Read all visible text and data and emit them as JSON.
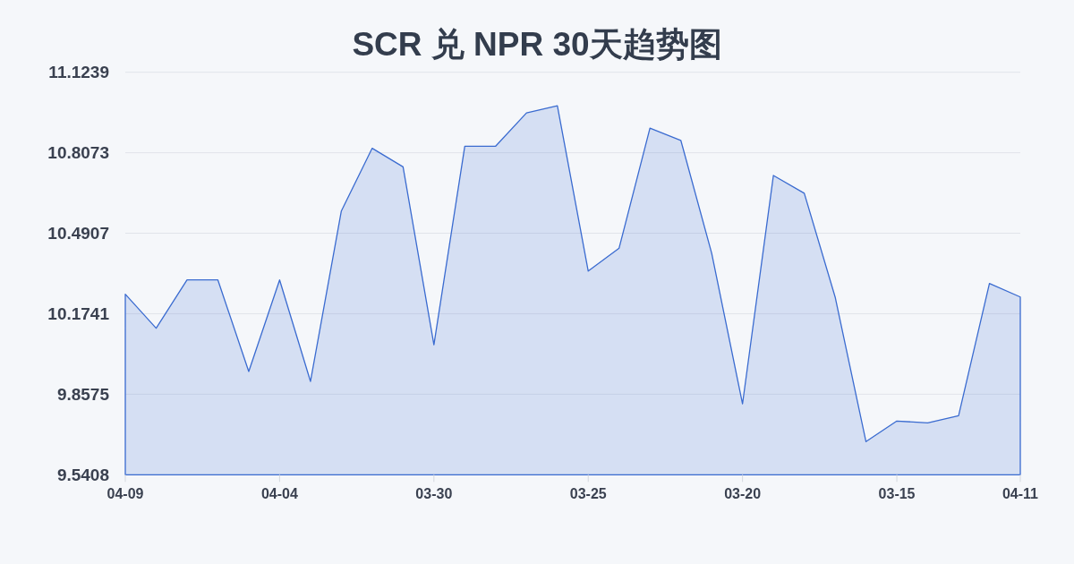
{
  "chart_data": {
    "type": "area",
    "title": "SCR 兑 NPR 30天趋势图",
    "categories": [
      "04-09",
      null,
      null,
      null,
      null,
      "04-04",
      null,
      null,
      null,
      null,
      "03-30",
      null,
      null,
      null,
      null,
      "03-25",
      null,
      null,
      null,
      null,
      "03-20",
      null,
      null,
      null,
      null,
      "03-15",
      null,
      null,
      null,
      "04-11"
    ],
    "values": [
      10.251,
      10.117,
      10.307,
      10.307,
      9.947,
      10.307,
      9.908,
      10.578,
      10.825,
      10.752,
      10.052,
      10.833,
      10.833,
      10.964,
      10.992,
      10.342,
      10.432,
      10.904,
      10.856,
      10.412,
      9.82,
      10.718,
      10.648,
      10.24,
      9.671,
      9.752,
      9.745,
      9.773,
      10.293,
      10.24
    ],
    "color": "#3a6bd0",
    "ylim": [
      9.5408,
      11.1239
    ],
    "yticks": [
      9.5408,
      9.8575,
      10.1741,
      10.4907,
      10.8073,
      11.1239
    ],
    "grid": "y"
  }
}
